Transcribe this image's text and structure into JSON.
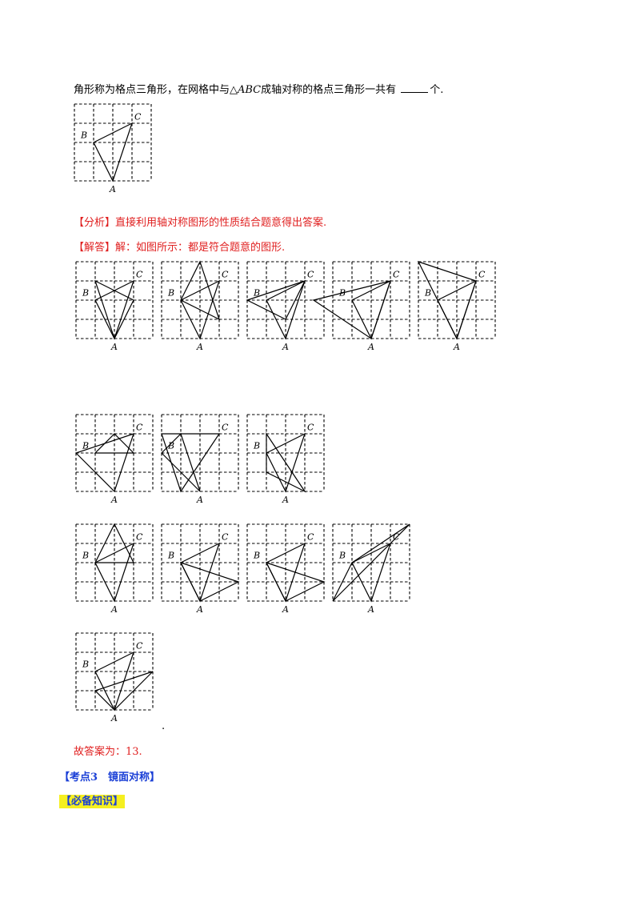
{
  "question": {
    "text_before": "角形称为格点三角形，在网格中与△",
    "abc": "ABC",
    "text_after": "成轴对称的格点三角形一共有",
    "text_end": "个."
  },
  "analysis": {
    "tag": "【分析】",
    "text": "直接利用轴对称图形的性质结合题意得出答案."
  },
  "solution": {
    "tag": "【解答】",
    "text": "解：如图所示：都是符合题意的图形."
  },
  "labels": {
    "A": "A",
    "B": "B",
    "C": "C"
  },
  "period": ".",
  "answer": "故答案为：13.",
  "section": {
    "label": "【考点3　镜面对称】",
    "knowledge": "【必备知识】"
  },
  "grid_size": {
    "cols": 4,
    "rows": 4
  },
  "triangles": {
    "question": [
      [
        [
          1,
          1
        ],
        [
          3,
          0
        ],
        [
          2,
          3
        ]
      ]
    ],
    "figures": [
      [
        [
          [
            1,
            1
          ],
          [
            3,
            0
          ],
          [
            2,
            3
          ]
        ],
        [
          [
            1,
            0
          ],
          [
            3,
            1
          ],
          [
            2,
            3
          ]
        ]
      ],
      [
        [
          [
            1,
            1
          ],
          [
            3,
            0
          ],
          [
            2,
            3
          ]
        ],
        [
          [
            1,
            1
          ],
          [
            2,
            -1
          ],
          [
            3,
            2
          ]
        ]
      ],
      [
        [
          [
            1,
            1
          ],
          [
            3,
            0
          ],
          [
            2,
            3
          ]
        ],
        [
          [
            0,
            1
          ],
          [
            3,
            0
          ],
          [
            2,
            2
          ]
        ]
      ],
      [
        [
          [
            1,
            1
          ],
          [
            3,
            0
          ],
          [
            2,
            3
          ]
        ],
        [
          [
            -1,
            1
          ],
          [
            3,
            0
          ],
          [
            2,
            3
          ]
        ]
      ],
      [
        [
          [
            1,
            1
          ],
          [
            3,
            0
          ],
          [
            2,
            3
          ]
        ],
        [
          [
            0,
            -1
          ],
          [
            3,
            0
          ],
          [
            2,
            3
          ]
        ]
      ],
      [
        [
          [
            1,
            1
          ],
          [
            3,
            1
          ],
          [
            2,
            0
          ]
        ],
        [
          [
            0,
            1
          ],
          [
            2,
            3
          ],
          [
            3,
            0
          ]
        ]
      ],
      [
        [
          [
            0,
            0
          ],
          [
            3,
            0
          ],
          [
            1,
            3
          ]
        ],
        [
          [
            0,
            1
          ],
          [
            2,
            3
          ],
          [
            1,
            0
          ]
        ]
      ],
      [
        [
          [
            1,
            1
          ],
          [
            3,
            0
          ],
          [
            2,
            3
          ]
        ],
        [
          [
            1,
            0
          ],
          [
            1,
            2
          ],
          [
            3,
            3
          ]
        ]
      ],
      [
        [
          [
            1,
            1
          ],
          [
            3,
            0
          ],
          [
            2,
            3
          ]
        ],
        [
          [
            1,
            1
          ],
          [
            3,
            1
          ],
          [
            2,
            -1
          ]
        ]
      ],
      [
        [
          [
            1,
            1
          ],
          [
            3,
            0
          ],
          [
            2,
            3
          ]
        ],
        [
          [
            1,
            1
          ],
          [
            4,
            2
          ],
          [
            2,
            3
          ]
        ]
      ],
      [
        [
          [
            1,
            1
          ],
          [
            3,
            0
          ],
          [
            2,
            3
          ]
        ],
        [
          [
            1,
            1
          ],
          [
            4,
            2
          ],
          [
            2,
            3
          ]
        ]
      ],
      [
        [
          [
            1,
            1
          ],
          [
            3,
            0
          ],
          [
            2,
            3
          ]
        ],
        [
          [
            0,
            3
          ],
          [
            4,
            -1
          ],
          [
            1,
            1
          ]
        ]
      ],
      [
        [
          [
            1,
            1
          ],
          [
            3,
            0
          ],
          [
            2,
            3
          ]
        ],
        [
          [
            1,
            2
          ],
          [
            4,
            1
          ],
          [
            2,
            3
          ]
        ]
      ]
    ]
  }
}
